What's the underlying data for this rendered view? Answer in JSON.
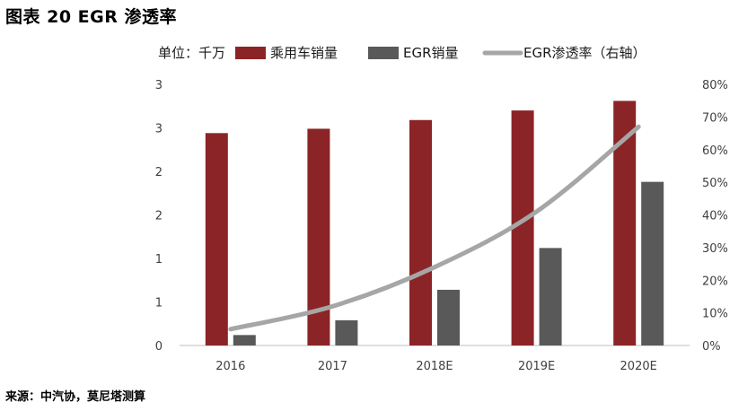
{
  "title": "图表 20 EGR 渗透率",
  "source": "来源：中汽协，莫尼塔测算",
  "colors": {
    "passenger": "#8b2426",
    "egr": "#595959",
    "rate": "#a6a6a6",
    "axis": "#bfbfbf",
    "text": "#404040"
  },
  "chart_data": {
    "type": "bar",
    "unit_label": "单位：千万",
    "categories": [
      "2016",
      "2017",
      "2018E",
      "2019E",
      "2020E"
    ],
    "series": [
      {
        "name": "乘用车销量",
        "type": "bar",
        "axis": "left",
        "values": [
          2.44,
          2.49,
          2.59,
          2.7,
          2.81
        ]
      },
      {
        "name": "EGR销量",
        "type": "bar",
        "axis": "left",
        "values": [
          0.12,
          0.29,
          0.64,
          1.12,
          1.88
        ]
      },
      {
        "name": "EGR渗透率（右轴）",
        "type": "line",
        "axis": "right",
        "values": [
          0.05,
          0.12,
          0.24,
          0.41,
          0.67
        ]
      }
    ],
    "y_left": {
      "ticks": [
        "0",
        "1",
        "1",
        "2",
        "2",
        "3",
        "3"
      ],
      "range": [
        0,
        3
      ]
    },
    "y_right": {
      "ticks": [
        "0%",
        "10%",
        "20%",
        "30%",
        "40%",
        "50%",
        "60%",
        "70%",
        "80%"
      ],
      "range": [
        0,
        0.8
      ]
    },
    "legend_position": "top",
    "grid": false
  }
}
